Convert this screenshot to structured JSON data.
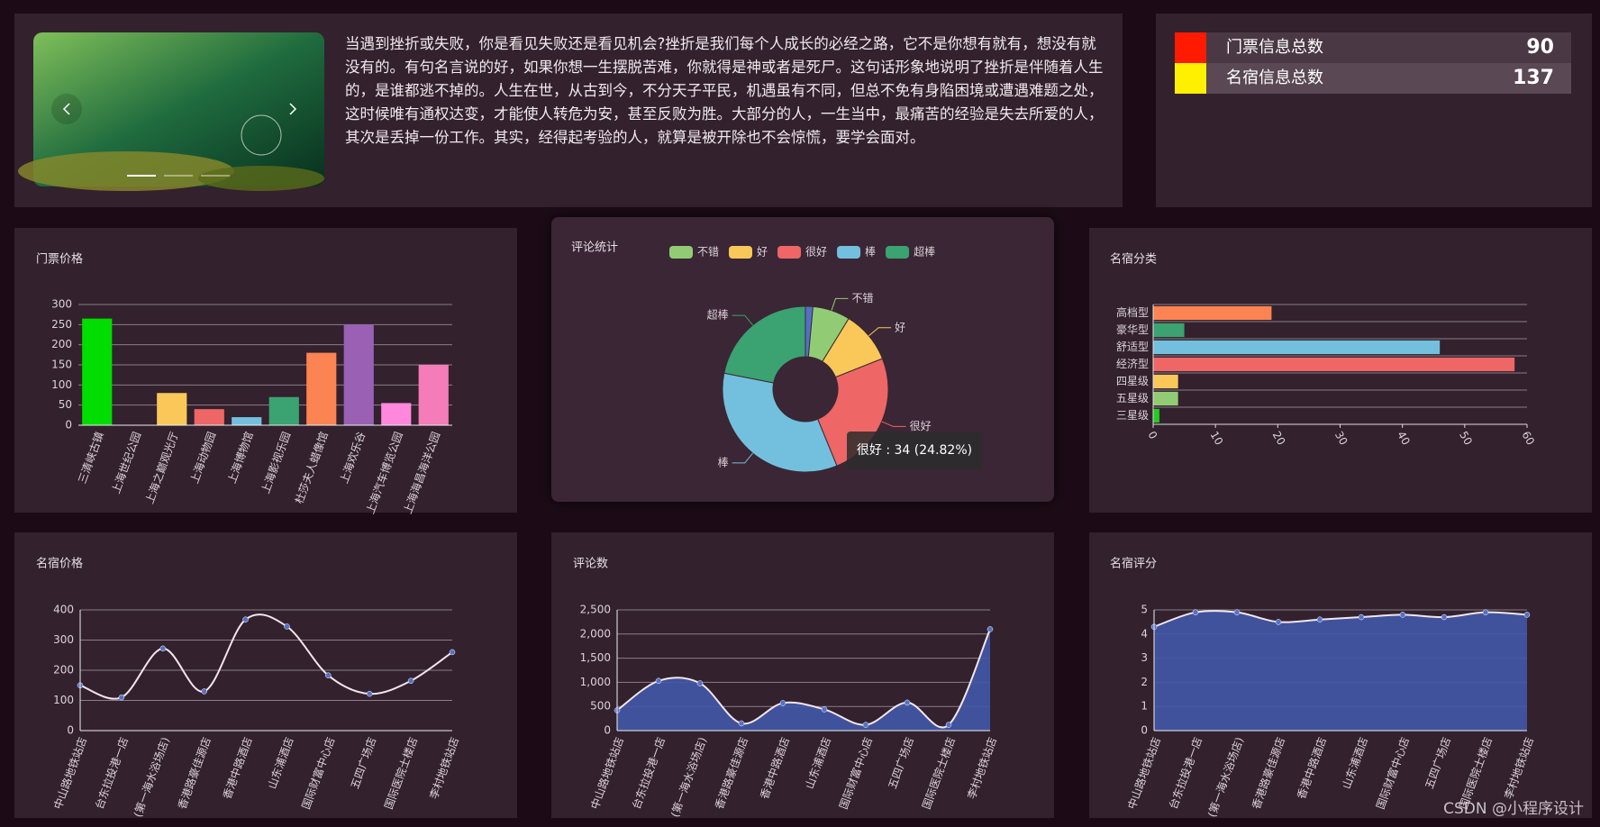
{
  "banner": {
    "text": "当遇到挫折或失败，你是看见失败还是看见机会?挫折是我们每个人成长的必经之路，它不是你想有就有，想没有就没有的。有句名言说的好，如果你想一生摆脱苦难，你就得是神或者是死尸。这句话形象地说明了挫折是伴随着人生的，是谁都逃不掉的。人生在世，从古到今，不分天子平民，机遇虽有不同，但总不免有身陷困境或遭遇难题之处，这时候唯有通权达变，才能使人转危为安，甚至反败为胜。大部分的人，一生当中，最痛苦的经验是失去所爱的人，其次是丢掉一份工作。其实，经得起考验的人，就算是被开除也不会惊慌，要学会面对。"
  },
  "stats": [
    {
      "label": "门票信息总数",
      "value": 90,
      "color": "#ff1a00"
    },
    {
      "label": "名宿信息总数",
      "value": 137,
      "color": "#fff000"
    }
  ],
  "chart_data": [
    {
      "type": "bar",
      "title": "门票价格",
      "categories": [
        "三清峡古镇",
        "上海世纪公园",
        "上海之巅观光厅",
        "上海动物园",
        "上海博物馆",
        "上海影视乐园",
        "杜莎夫人蜡像馆",
        "上海欢乐谷",
        "上海汽车博览公园",
        "上海海昌海洋公园"
      ],
      "values": [
        265,
        0,
        80,
        40,
        20,
        70,
        180,
        250,
        55,
        150
      ],
      "colors": [
        "#00dd00",
        "#5470c6",
        "#fac858",
        "#ee6666",
        "#73c0de",
        "#3ba272",
        "#fc8452",
        "#9a60b4",
        "#ff88dd",
        "#f47cb8"
      ],
      "ylim": [
        0,
        300
      ],
      "yticks": [
        0,
        50,
        100,
        150,
        200,
        250,
        300
      ],
      "grid": true
    },
    {
      "type": "pie",
      "title": "评论统计",
      "categories": [
        null,
        "不错",
        "好",
        "很好",
        "棒",
        "超棒"
      ],
      "values": [
        2,
        10,
        14,
        34,
        47,
        30
      ],
      "colors": [
        "#5470c6",
        "#91cc75",
        "#fac858",
        "#ee6666",
        "#73c0de",
        "#3ba272"
      ],
      "tooltip": "很好 : 34 (24.82%)"
    },
    {
      "type": "bar",
      "orientation": "horizontal",
      "title": "名宿分类",
      "categories": [
        "三星级",
        "五星级",
        "四星级",
        "经济型",
        "舒适型",
        "豪华型",
        "高档型"
      ],
      "values": [
        1,
        4,
        4,
        58,
        46,
        5,
        19
      ],
      "colors": [
        "#22cc22",
        "#91cc75",
        "#fac858",
        "#ee6666",
        "#73c0de",
        "#3ba272",
        "#fc8452"
      ],
      "xlim": [
        0,
        60
      ],
      "xticks": [
        0,
        10,
        20,
        30,
        40,
        50,
        60
      ],
      "grid": true
    },
    {
      "type": "line",
      "title": "名宿价格",
      "smooth": true,
      "area": false,
      "categories": [
        "中山路地铁站店",
        "台东拉投港一店",
        "(第一海水浴场店)",
        "香港路豪佳源店",
        "香港中路酒店",
        "山东浦酒店",
        "国际财富中心店",
        "五四广场店",
        "国际医院士楼店",
        "李村地铁站店"
      ],
      "values": [
        150,
        110,
        272,
        130,
        368,
        345,
        183,
        122,
        165,
        260
      ],
      "color": "#f2e6ee",
      "point_color": "#5470c6",
      "ylim": [
        0,
        400
      ],
      "yticks": [
        0,
        100,
        200,
        300,
        400
      ],
      "grid": true
    },
    {
      "type": "line",
      "title": "评论数",
      "smooth": true,
      "area": true,
      "categories": [
        "中山路地铁站店",
        "台东拉投港一店",
        "(第一海水浴场店)",
        "香港路豪佳源店",
        "香港中路酒店",
        "山东浦酒店",
        "国际财富中心店",
        "五四广场店",
        "国际医院士楼店",
        "李村地铁站店"
      ],
      "values": [
        420,
        1030,
        980,
        150,
        570,
        440,
        120,
        580,
        120,
        2100
      ],
      "color": "#f2e6ee",
      "point_color": "#5470c6",
      "area_color": "#4258a8",
      "ylim": [
        0,
        2500
      ],
      "yticks": [
        0,
        500,
        {
          "value": 1000,
          "label": "1,000"
        },
        {
          "value": 1500,
          "label": "1,500"
        },
        {
          "value": 2000,
          "label": "2,000"
        },
        {
          "value": 2500,
          "label": "2,500"
        }
      ],
      "grid": true
    },
    {
      "type": "line",
      "title": "名宿评分",
      "smooth": true,
      "area": true,
      "categories": [
        "中山路地铁站店",
        "台东拉投港一店",
        "(第一海水浴场店)",
        "香港路豪佳源店",
        "香港中路酒店",
        "山东浦酒店",
        "国际财富中心店",
        "五四广场店",
        "国际医院士楼店",
        "李村地铁站店"
      ],
      "values": [
        4.3,
        4.9,
        4.9,
        4.5,
        4.6,
        4.7,
        4.8,
        4.7,
        4.9,
        4.8
      ],
      "color": "#f2e6ee",
      "point_color": "#5470c6",
      "area_color": "#4258a8",
      "ylim": [
        0,
        5
      ],
      "yticks": [
        0,
        1,
        2,
        3,
        4,
        5
      ],
      "grid": true
    }
  ],
  "watermark": "CSDN @小程序设计"
}
